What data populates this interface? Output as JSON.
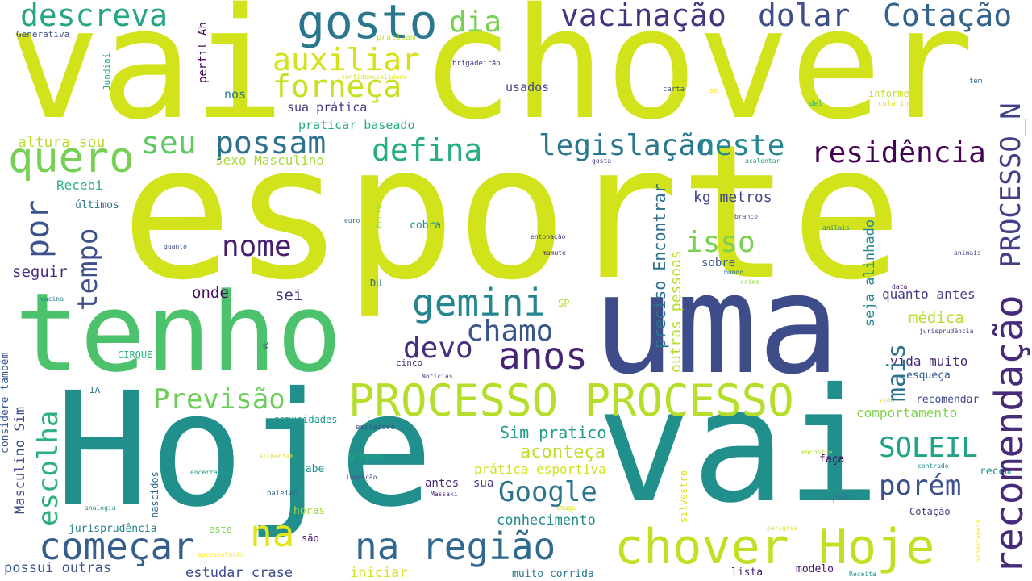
{
  "words": [
    {
      "text": "esporte",
      "color": "#d2e21b"
    },
    {
      "text": "vai",
      "color": "#d2e21b"
    },
    {
      "text": "chover",
      "color": "#d2e21b"
    },
    {
      "text": "Hoje",
      "color": "#21908d"
    },
    {
      "text": "vai",
      "color": "#21908d"
    },
    {
      "text": "uma",
      "color": "#3e4c8a"
    },
    {
      "text": "tenho",
      "color": "#4cc26c"
    },
    {
      "text": "PROCESSO PROCESSO",
      "color": "#b5de2b"
    },
    {
      "text": "chover Hoje",
      "color": "#c2df23"
    },
    {
      "text": "começar",
      "color": "#355e8d"
    },
    {
      "text": "na região",
      "color": "#31688e"
    },
    {
      "text": "gosto",
      "color": "#2a768e"
    },
    {
      "text": "descreva",
      "color": "#25a584"
    },
    {
      "text": "vacinação",
      "color": "#46337f"
    },
    {
      "text": "dolar",
      "color": "#3d4e8a"
    },
    {
      "text": "Cotação",
      "color": "#33638d"
    },
    {
      "text": "quero",
      "color": "#75d054"
    },
    {
      "text": "auxiliar",
      "color": "#d5e21a"
    },
    {
      "text": "forneça",
      "color": "#c8e020"
    },
    {
      "text": "dia",
      "color": "#75d054"
    },
    {
      "text": "seu",
      "color": "#5ec962"
    },
    {
      "text": "possam",
      "color": "#2d718e"
    },
    {
      "text": "defina",
      "color": "#26ad81"
    },
    {
      "text": "legislação",
      "color": "#2a788e"
    },
    {
      "text": "neste",
      "color": "#23898e"
    },
    {
      "text": "residência",
      "color": "#440154"
    },
    {
      "text": "gemini",
      "color": "#24868e"
    },
    {
      "text": "nome",
      "color": "#481f70"
    },
    {
      "text": "isso",
      "color": "#7ad151"
    },
    {
      "text": "chamo",
      "color": "#39568c"
    },
    {
      "text": "anos",
      "color": "#482475"
    },
    {
      "text": "devo",
      "color": "#472d7b"
    },
    {
      "text": "Previsão",
      "color": "#6ccd5a"
    },
    {
      "text": "SOLEIL",
      "color": "#20a386"
    },
    {
      "text": "porém",
      "color": "#3b528b"
    },
    {
      "text": "Google",
      "color": "#2c738e"
    },
    {
      "text": "na",
      "color": "#e5e419"
    },
    {
      "text": "aconteça",
      "color": "#bddf26"
    },
    {
      "text": "Sim pratico",
      "color": "#1f9e89"
    },
    {
      "text": "kg metros",
      "color": "#3f4788"
    },
    {
      "text": "altura sou",
      "color": "#b5de2b"
    },
    {
      "text": "Recebi",
      "color": "#2db27d"
    },
    {
      "text": "sexo Masculino",
      "color": "#a8db34"
    },
    {
      "text": "praticar baseado",
      "color": "#26ad81"
    },
    {
      "text": "sua prática",
      "color": "#443a83"
    },
    {
      "text": "nos",
      "color": "#2a788e"
    },
    {
      "text": "usados",
      "color": "#414487"
    },
    {
      "text": "seguir",
      "color": "#472d7b"
    },
    {
      "text": "onde",
      "color": "#471063"
    },
    {
      "text": "sei",
      "color": "#443983"
    },
    {
      "text": "sobre",
      "color": "#39568c"
    },
    {
      "text": "quanto antes",
      "color": "#423f85"
    },
    {
      "text": "médica",
      "color": "#b5de2b"
    },
    {
      "text": "vida muito",
      "color": "#482878"
    },
    {
      "text": "esqueça",
      "color": "#375b8d"
    },
    {
      "text": "recomendar",
      "color": "#404688"
    },
    {
      "text": "comportamento",
      "color": "#7fd34e"
    },
    {
      "text": "conhecimento",
      "color": "#228c8d"
    },
    {
      "text": "prática esportiva",
      "color": "#d2e21b"
    },
    {
      "text": "antes",
      "color": "#482878"
    },
    {
      "text": "sua",
      "color": "#433e85"
    },
    {
      "text": "possui outras",
      "color": "#3b528b"
    },
    {
      "text": "estudar crase",
      "color": "#3e4a89"
    },
    {
      "text": "iniciar",
      "color": "#d8e219"
    },
    {
      "text": "muito corrida",
      "color": "#2a788e"
    },
    {
      "text": "modelo",
      "color": "#460b5e"
    },
    {
      "text": "lista",
      "color": "#482576"
    },
    {
      "text": "jurisprudência",
      "color": "#27808e"
    },
    {
      "text": "horas",
      "color": "#a5db36"
    },
    {
      "text": "sabe",
      "color": "#218f8d"
    },
    {
      "text": "são",
      "color": "#471164"
    },
    {
      "text": "grupos",
      "color": "#20a486"
    },
    {
      "text": "comunidades",
      "color": "#1f988b"
    },
    {
      "text": "CIRQUE",
      "color": "#31b57b"
    },
    {
      "text": "DU",
      "color": "#2e6f8e"
    },
    {
      "text": "SP",
      "color": "#b0dd2f"
    },
    {
      "text": "cinco",
      "color": "#443983"
    },
    {
      "text": "cobra",
      "color": "#21918c"
    },
    {
      "text": "últimos",
      "color": "#2c728e"
    },
    {
      "text": "Generativa",
      "color": "#3b528b"
    },
    {
      "text": "praticam",
      "color": "#c0df25"
    },
    {
      "text": "brigadeirão",
      "color": "#46337f"
    },
    {
      "text": "confidencialidade",
      "color": "#dde318"
    },
    {
      "text": "carta",
      "color": "#3b528b"
    },
    {
      "text": "se",
      "color": "#fde725"
    },
    {
      "text": "tem",
      "color": "#31668e"
    },
    {
      "text": "informe",
      "color": "#c2df23"
    },
    {
      "text": "colarinho",
      "color": "#dde318"
    },
    {
      "text": "del",
      "color": "#2fb47c"
    },
    {
      "text": "gosta",
      "color": "#472d7b"
    },
    {
      "text": "acalentar",
      "color": "#1f988b"
    },
    {
      "text": "euro",
      "color": "#2c728e"
    },
    {
      "text": "branco",
      "color": "#39568c"
    },
    {
      "text": "anilais",
      "color": "#23898e"
    },
    {
      "text": "entonação",
      "color": "#46337f"
    },
    {
      "text": "quanto",
      "color": "#3e4c8a"
    },
    {
      "text": "mamute",
      "color": "#482878"
    },
    {
      "text": "mundo",
      "color": "#2c728e"
    },
    {
      "text": "animais",
      "color": "#414487"
    },
    {
      "text": "crime",
      "color": "#95d840"
    },
    {
      "text": "data",
      "color": "#482173"
    },
    {
      "text": "vacina",
      "color": "#277f8e"
    },
    {
      "text": "jurisprudência",
      "color": "#453781"
    },
    {
      "text": "Notícias",
      "color": "#433e85"
    },
    {
      "text": "yuan",
      "color": "#e2e418"
    },
    {
      "text": "esclerose",
      "color": "#3e4a89"
    },
    {
      "text": "IA",
      "color": "#2c728e"
    },
    {
      "text": "alimentam",
      "color": "#e5e419"
    },
    {
      "text": "encerradas",
      "color": "#1f9a8a"
    },
    {
      "text": "inovação",
      "color": "#3b528b"
    },
    {
      "text": "baleias",
      "color": "#31688e"
    },
    {
      "text": "Massaki",
      "color": "#482878"
    },
    {
      "text": "analogia",
      "color": "#228d8d"
    },
    {
      "text": "chaga",
      "color": "#dde318"
    },
    {
      "text": "encontre",
      "color": "#addc30"
    },
    {
      "text": "contrado",
      "color": "#24868e"
    },
    {
      "text": "faça",
      "color": "#440154"
    },
    {
      "text": "recém",
      "color": "#1f988b"
    },
    {
      "text": "qual",
      "color": "#2a788e"
    },
    {
      "text": "Cotação",
      "color": "#453781"
    },
    {
      "text": "perigosa",
      "color": "#dde318"
    },
    {
      "text": "este",
      "color": "#7ad151"
    },
    {
      "text": "apresentação",
      "color": "#fde725"
    },
    {
      "text": "Receita",
      "color": "#1f988b"
    },
    {
      "text": "por",
      "color": "#3b528b"
    },
    {
      "text": "tempo",
      "color": "#3d4e8a"
    },
    {
      "text": "escolha",
      "color": "#2db27d"
    },
    {
      "text": "mais",
      "color": "#2c728e"
    },
    {
      "text": "recomendação",
      "color": "#472a7a"
    },
    {
      "text": "PROCESSO_N",
      "color": "#424086"
    },
    {
      "text": "preciso Encontrar",
      "color": "#2c728e"
    },
    {
      "text": "outras pessoas",
      "color": "#b5de2b"
    },
    {
      "text": "seja alinhado",
      "color": "#23898e"
    },
    {
      "text": "perfil Ah",
      "color": "#440154"
    },
    {
      "text": "Jundiaí",
      "color": "#27ad81"
    },
    {
      "text": "Pedro",
      "color": "#a2da37"
    },
    {
      "text": "considere também",
      "color": "#38598c"
    },
    {
      "text": "Masculino Sim",
      "color": "#3e4c8a"
    },
    {
      "text": "nascidos",
      "color": "#31688e"
    },
    {
      "text": "silvestre",
      "color": "#dde318"
    },
    {
      "text": "Vc",
      "color": "#3b528b"
    },
    {
      "text": "onomatopeia",
      "color": "#fde725"
    }
  ]
}
